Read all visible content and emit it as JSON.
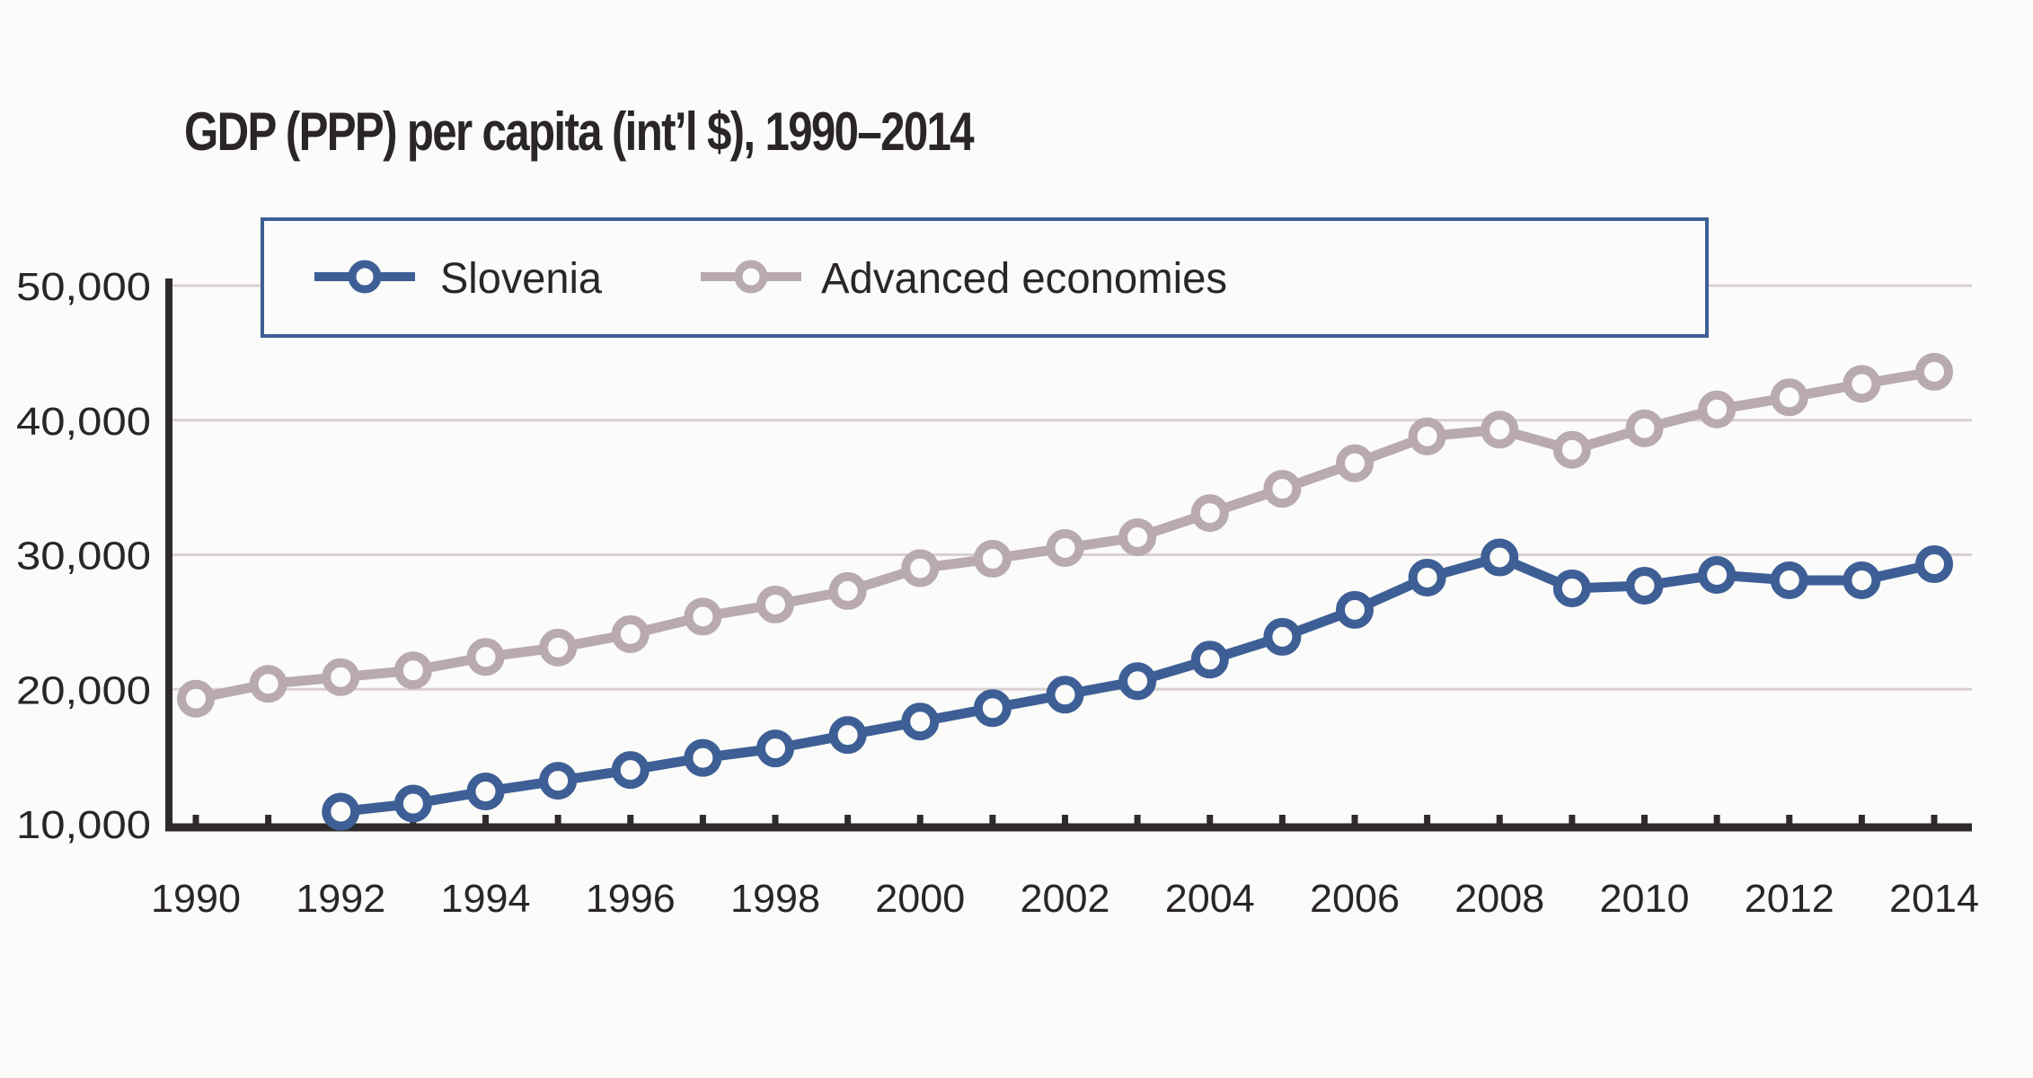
{
  "chart_data": {
    "type": "line",
    "title": "GDP (PPP) per capita (int’l $), 1990–2014",
    "xlabel": "",
    "ylabel": "",
    "x": [
      1990,
      1991,
      1992,
      1993,
      1994,
      1995,
      1996,
      1997,
      1998,
      1999,
      2000,
      2001,
      2002,
      2003,
      2004,
      2005,
      2006,
      2007,
      2008,
      2009,
      2010,
      2011,
      2012,
      2013,
      2014
    ],
    "xticks": [
      "1990",
      "1992",
      "1994",
      "1996",
      "1998",
      "2000",
      "2002",
      "2004",
      "2006",
      "2008",
      "2010",
      "2012",
      "2014"
    ],
    "yticks": [
      "10,000",
      "20,000",
      "30,000",
      "40,000",
      "50,000"
    ],
    "ylim": [
      10000,
      50000
    ],
    "xlim": [
      1990,
      2014
    ],
    "grid": true,
    "legend_position": "top",
    "series": [
      {
        "name": "Slovenia",
        "color": "#3e5f95",
        "values": [
          null,
          null,
          10900,
          11500,
          12400,
          13200,
          14000,
          14900,
          15600,
          16600,
          17600,
          18600,
          19600,
          20600,
          22200,
          23900,
          25900,
          28300,
          29800,
          27500,
          27700,
          28500,
          28100,
          28100,
          29300
        ]
      },
      {
        "name": "Advanced economies",
        "color": "#b8aab0",
        "values": [
          19300,
          20400,
          20900,
          21400,
          22400,
          23100,
          24100,
          25400,
          26300,
          27300,
          29000,
          29700,
          30500,
          31300,
          33100,
          34900,
          36800,
          38800,
          39300,
          37800,
          39400,
          40800,
          41700,
          42700,
          43600
        ]
      }
    ]
  }
}
